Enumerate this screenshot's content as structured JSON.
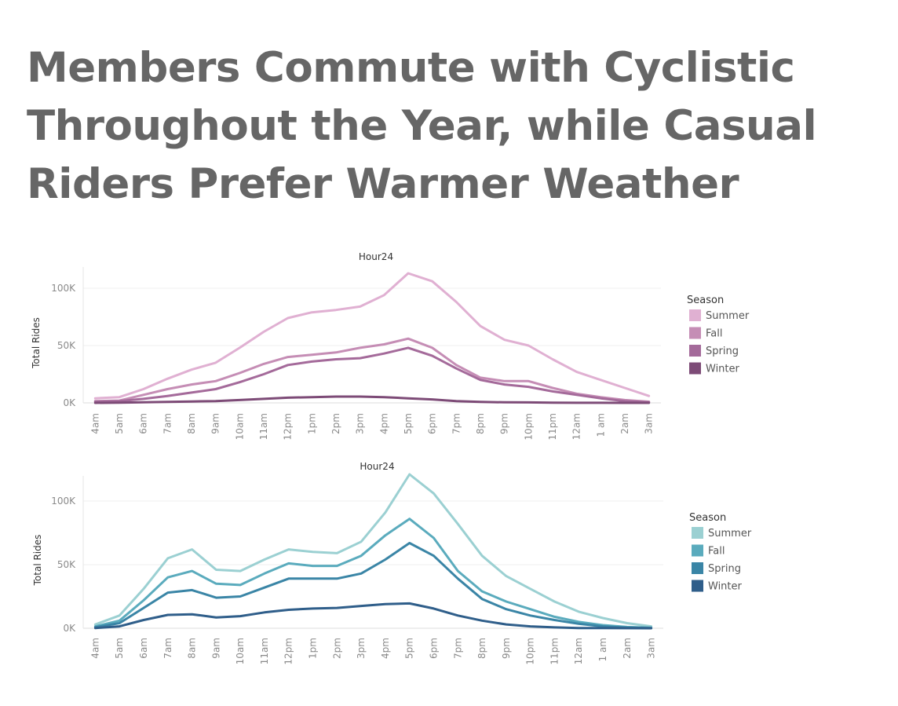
{
  "title_lines": [
    "Members Commute with Cyclistic",
    "Throughout the Year, while Casual",
    "Riders Prefer Warmer Weather"
  ],
  "chart_data": [
    {
      "type": "line",
      "title": "Hour24",
      "ylabel": "Total Rides",
      "ylim": [
        0,
        120000
      ],
      "y_ticks": [
        0,
        50000,
        100000
      ],
      "y_tick_labels": [
        "0K",
        "50K",
        "100K"
      ],
      "grid": true,
      "legend_title": "Season",
      "legend_position": "right",
      "categories": [
        "4am",
        "5am",
        "6am",
        "7am",
        "8am",
        "9am",
        "10am",
        "11am",
        "12pm",
        "1pm",
        "2pm",
        "3pm",
        "4pm",
        "5pm",
        "6pm",
        "7pm",
        "8pm",
        "9pm",
        "10pm",
        "11pm",
        "12am",
        "1 am",
        "2am",
        "3am"
      ],
      "series": [
        {
          "name": "Summer",
          "color": "#e0b0d2",
          "values": [
            4000,
            5000,
            12000,
            21000,
            29000,
            35000,
            48000,
            62000,
            74000,
            79000,
            81000,
            84000,
            94000,
            113000,
            106000,
            88000,
            67000,
            55000,
            50000,
            38000,
            27000,
            20000,
            13000,
            6000
          ]
        },
        {
          "name": "Fall",
          "color": "#c58db5",
          "values": [
            1500,
            2000,
            7000,
            12000,
            16000,
            19000,
            26000,
            34000,
            40000,
            42000,
            44000,
            48000,
            51000,
            56000,
            48000,
            33000,
            22000,
            19000,
            19000,
            13000,
            8000,
            5000,
            2500,
            1000
          ]
        },
        {
          "name": "Spring",
          "color": "#a46a9a",
          "values": [
            1000,
            1500,
            3500,
            6000,
            9000,
            12000,
            18000,
            25000,
            33000,
            36000,
            38000,
            39000,
            43000,
            48000,
            41000,
            30000,
            20000,
            16000,
            14000,
            10000,
            7000,
            4000,
            1500,
            500
          ]
        },
        {
          "name": "Winter",
          "color": "#7d4b77",
          "values": [
            0,
            200,
            500,
            800,
            1200,
            1600,
            2500,
            3500,
            4500,
            5000,
            5500,
            5500,
            5000,
            4000,
            3000,
            1500,
            800,
            500,
            400,
            200,
            100,
            50,
            0,
            0
          ]
        }
      ]
    },
    {
      "type": "line",
      "title": "Hour24",
      "ylabel": "Total Rides",
      "ylim": [
        0,
        120000
      ],
      "y_ticks": [
        0,
        50000,
        100000
      ],
      "y_tick_labels": [
        "0K",
        "50K",
        "100K"
      ],
      "grid": true,
      "legend_title": "Season",
      "legend_position": "right",
      "categories": [
        "4am",
        "5am",
        "6am",
        "7am",
        "8am",
        "9am",
        "10am",
        "11am",
        "12pm",
        "1pm",
        "2pm",
        "3pm",
        "4pm",
        "5pm",
        "6pm",
        "7pm",
        "8pm",
        "9pm",
        "10pm",
        "11pm",
        "12am",
        "1 am",
        "2am",
        "3am"
      ],
      "series": [
        {
          "name": "Summer",
          "color": "#9bd0d2",
          "values": [
            3000,
            10000,
            31000,
            55000,
            62000,
            46000,
            45000,
            54000,
            62000,
            60000,
            59000,
            68000,
            91000,
            121000,
            106000,
            82000,
            57000,
            41000,
            31000,
            21000,
            13000,
            8000,
            4000,
            1500
          ]
        },
        {
          "name": "Fall",
          "color": "#5aabbd",
          "values": [
            1500,
            6000,
            22000,
            40000,
            45000,
            35000,
            34000,
            43000,
            51000,
            49000,
            49000,
            57000,
            73000,
            86000,
            71000,
            45000,
            29000,
            21000,
            15000,
            9000,
            5000,
            2500,
            1000,
            500
          ]
        },
        {
          "name": "Spring",
          "color": "#3a85a6",
          "values": [
            800,
            4000,
            16000,
            28000,
            30000,
            24000,
            25000,
            32000,
            39000,
            39000,
            39000,
            43000,
            54000,
            67000,
            57000,
            39000,
            23000,
            15000,
            10000,
            6500,
            3500,
            1500,
            500,
            200
          ]
        },
        {
          "name": "Winter",
          "color": "#2f5e8a",
          "values": [
            200,
            1500,
            6500,
            10500,
            11000,
            8500,
            9500,
            12500,
            14500,
            15500,
            16000,
            17500,
            19000,
            19500,
            15500,
            10000,
            6000,
            3000,
            1500,
            700,
            200,
            100,
            50,
            0
          ]
        }
      ]
    }
  ]
}
